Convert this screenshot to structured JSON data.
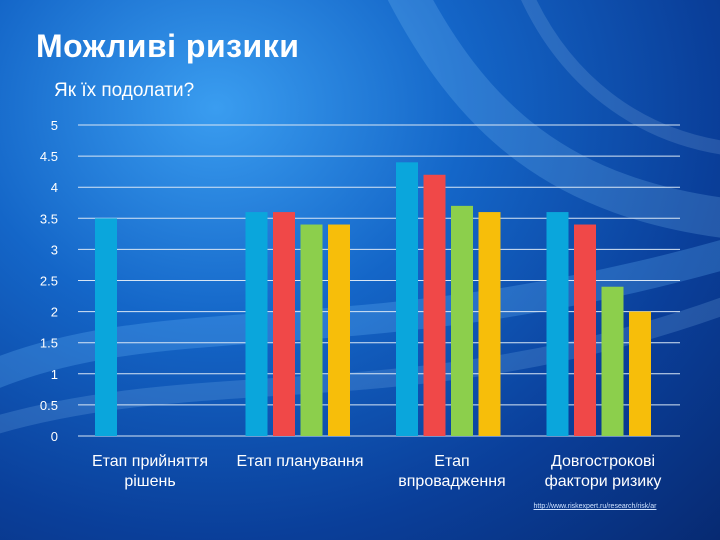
{
  "slide": {
    "title": "Можливі ризики",
    "subtitle": "Як їх подолати?",
    "source_link": "http://www.riskexpert.ru/research/risk/ar"
  },
  "colors": {
    "series": [
      "#0aa6dc",
      "#f04848",
      "#8ccf4c",
      "#f7be0a"
    ],
    "gridline": "#d8e6f5",
    "text": "#ffffff"
  },
  "chart_data": {
    "type": "bar",
    "categories": [
      [
        "Етап прийняття",
        "рішень"
      ],
      [
        "Етап планування"
      ],
      [
        "Етап",
        "впровадження"
      ],
      [
        "Довгострокові",
        "фактори ризику"
      ]
    ],
    "series": [
      {
        "values": [
          3.5,
          3.6,
          4.4,
          3.6
        ]
      },
      {
        "values": [
          null,
          3.6,
          4.2,
          3.4
        ]
      },
      {
        "values": [
          null,
          3.4,
          3.7,
          2.4
        ]
      },
      {
        "values": [
          null,
          3.4,
          3.6,
          2.0
        ]
      }
    ],
    "yticks": [
      "0",
      "0.5",
      "1",
      "1.5",
      "2",
      "2.5",
      "3",
      "3.5",
      "4",
      "4.5",
      "5"
    ],
    "ylim": [
      0,
      5
    ],
    "grid": true,
    "legend": "none"
  }
}
